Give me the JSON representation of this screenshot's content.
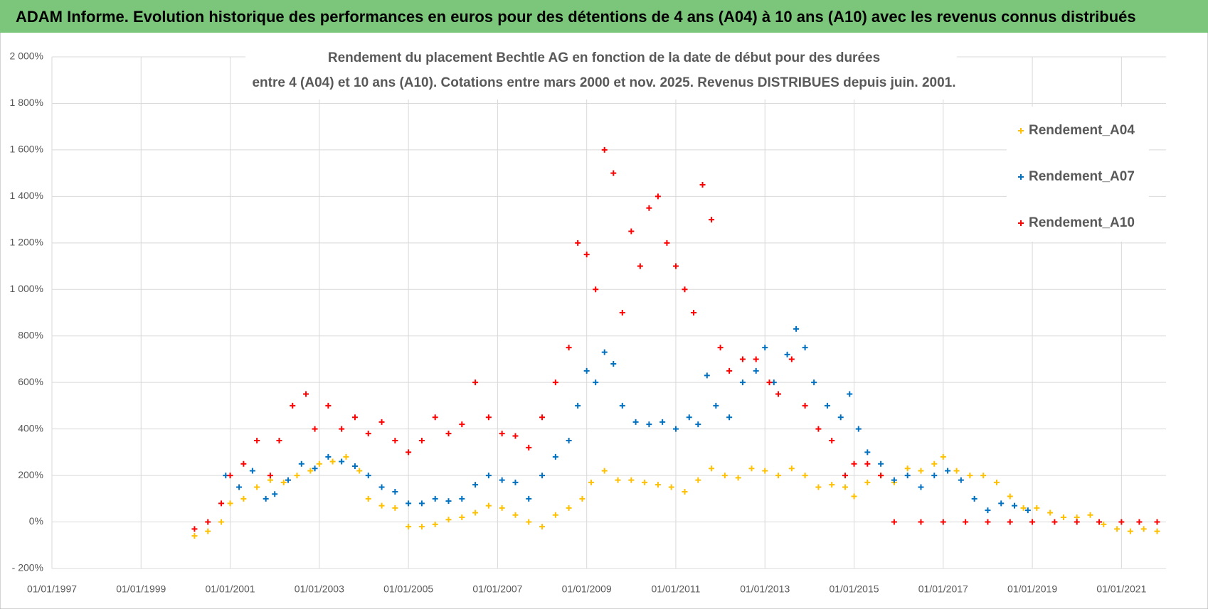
{
  "header_title": "ADAM Informe. Evolution historique des performances en euros pour des détentions de 4 ans (A04) à 10 ans (A10) avec les revenus connus distribués",
  "chart_data": {
    "type": "scatter",
    "title": "Rendement du placement Bechtle AG en fonction de la date de début pour des durées",
    "subtitle": "entre 4 (A04) et 10 ans (A10). Cotations entre mars 2000 et nov. 2025. Revenus DISTRIBUES depuis juin. 2001.",
    "xlim": [
      1997,
      2022
    ],
    "xticks": [
      {
        "value": 1997,
        "label": "01/01/1997"
      },
      {
        "value": 1999,
        "label": "01/01/1999"
      },
      {
        "value": 2001,
        "label": "01/01/2001"
      },
      {
        "value": 2003,
        "label": "01/01/2003"
      },
      {
        "value": 2005,
        "label": "01/01/2005"
      },
      {
        "value": 2007,
        "label": "01/01/2007"
      },
      {
        "value": 2009,
        "label": "01/01/2009"
      },
      {
        "value": 2011,
        "label": "01/01/2011"
      },
      {
        "value": 2013,
        "label": "01/01/2013"
      },
      {
        "value": 2015,
        "label": "01/01/2015"
      },
      {
        "value": 2017,
        "label": "01/01/2017"
      },
      {
        "value": 2019,
        "label": "01/01/2019"
      },
      {
        "value": 2021,
        "label": "01/01/2021"
      }
    ],
    "ylim": [
      -200,
      2000
    ],
    "yticks": [
      {
        "value": -200,
        "label": "- 200%"
      },
      {
        "value": 0,
        "label": "0%"
      },
      {
        "value": 200,
        "label": "200%"
      },
      {
        "value": 400,
        "label": "400%"
      },
      {
        "value": 600,
        "label": "600%"
      },
      {
        "value": 800,
        "label": "800%"
      },
      {
        "value": 1000,
        "label": "1 000%"
      },
      {
        "value": 1200,
        "label": "1 200%"
      },
      {
        "value": 1400,
        "label": "1 400%"
      },
      {
        "value": 1600,
        "label": "1 600%"
      },
      {
        "value": 1800,
        "label": "1 800%"
      },
      {
        "value": 2000,
        "label": "2 000%"
      }
    ],
    "grid": true,
    "legend": "right",
    "series": [
      {
        "name": "Rendement_A04",
        "color": "#ffc000",
        "x": [
          2000.2,
          2000.5,
          2000.8,
          2001.0,
          2001.3,
          2001.6,
          2001.9,
          2002.2,
          2002.5,
          2002.8,
          2003.0,
          2003.3,
          2003.6,
          2003.9,
          2004.1,
          2004.4,
          2004.7,
          2005.0,
          2005.3,
          2005.6,
          2005.9,
          2006.2,
          2006.5,
          2006.8,
          2007.1,
          2007.4,
          2007.7,
          2008.0,
          2008.3,
          2008.6,
          2008.9,
          2009.1,
          2009.4,
          2009.7,
          2010.0,
          2010.3,
          2010.6,
          2010.9,
          2011.2,
          2011.5,
          2011.8,
          2012.1,
          2012.4,
          2012.7,
          2013.0,
          2013.3,
          2013.6,
          2013.9,
          2014.2,
          2014.5,
          2014.8,
          2015.0,
          2015.3,
          2015.6,
          2015.9,
          2016.2,
          2016.5,
          2016.8,
          2017.0,
          2017.3,
          2017.6,
          2017.9,
          2018.2,
          2018.5,
          2018.8,
          2019.1,
          2019.4,
          2019.7,
          2020.0,
          2020.3,
          2020.6,
          2020.9,
          2021.2,
          2021.5,
          2021.8
        ],
        "values": [
          -60,
          -40,
          0,
          80,
          100,
          150,
          180,
          170,
          200,
          220,
          250,
          260,
          280,
          220,
          100,
          70,
          60,
          -20,
          -20,
          -10,
          10,
          20,
          40,
          70,
          60,
          30,
          0,
          -20,
          30,
          60,
          100,
          170,
          220,
          180,
          180,
          170,
          160,
          150,
          130,
          180,
          230,
          200,
          190,
          230,
          220,
          200,
          230,
          200,
          150,
          160,
          150,
          110,
          170,
          200,
          170,
          230,
          220,
          250,
          280,
          220,
          200,
          200,
          170,
          110,
          60,
          60,
          40,
          20,
          20,
          30,
          -10,
          -30,
          -40,
          -30,
          -40
        ]
      },
      {
        "name": "Rendement_A07",
        "color": "#0070c0",
        "x": [
          2000.9,
          2001.2,
          2001.5,
          2001.8,
          2002.0,
          2002.3,
          2002.6,
          2002.9,
          2003.2,
          2003.5,
          2003.8,
          2004.1,
          2004.4,
          2004.7,
          2005.0,
          2005.3,
          2005.6,
          2005.9,
          2006.2,
          2006.5,
          2006.8,
          2007.1,
          2007.4,
          2007.7,
          2008.0,
          2008.3,
          2008.6,
          2008.8,
          2009.0,
          2009.2,
          2009.4,
          2009.6,
          2009.8,
          2010.1,
          2010.4,
          2010.7,
          2011.0,
          2011.3,
          2011.5,
          2011.7,
          2011.9,
          2012.2,
          2012.5,
          2012.8,
          2013.0,
          2013.2,
          2013.5,
          2013.7,
          2013.9,
          2014.1,
          2014.4,
          2014.7,
          2014.9,
          2015.1,
          2015.3,
          2015.6,
          2015.9,
          2016.2,
          2016.5,
          2016.8,
          2017.1,
          2017.4,
          2017.7,
          2018.0,
          2018.3,
          2018.6,
          2018.9
        ],
        "values": [
          200,
          150,
          220,
          100,
          120,
          180,
          250,
          230,
          280,
          260,
          240,
          200,
          150,
          130,
          80,
          80,
          100,
          90,
          100,
          160,
          200,
          180,
          170,
          100,
          200,
          280,
          350,
          500,
          650,
          600,
          730,
          680,
          500,
          430,
          420,
          430,
          400,
          450,
          420,
          630,
          500,
          450,
          600,
          650,
          750,
          600,
          720,
          830,
          750,
          600,
          500,
          450,
          550,
          400,
          300,
          250,
          180,
          200,
          150,
          200,
          220,
          180,
          100,
          50,
          80,
          70,
          50
        ]
      },
      {
        "name": "Rendement_A10",
        "color": "#ff0000",
        "x": [
          2000.2,
          2000.5,
          2000.8,
          2001.0,
          2001.3,
          2001.6,
          2001.9,
          2002.1,
          2002.4,
          2002.7,
          2002.9,
          2003.2,
          2003.5,
          2003.8,
          2004.1,
          2004.4,
          2004.7,
          2005.0,
          2005.3,
          2005.6,
          2005.9,
          2006.2,
          2006.5,
          2006.8,
          2007.1,
          2007.4,
          2007.7,
          2008.0,
          2008.3,
          2008.6,
          2008.8,
          2009.0,
          2009.2,
          2009.4,
          2009.6,
          2009.8,
          2010.0,
          2010.2,
          2010.4,
          2010.6,
          2010.8,
          2011.0,
          2011.2,
          2011.4,
          2011.6,
          2011.8,
          2012.0,
          2012.2,
          2012.5,
          2012.8,
          2013.1,
          2013.3,
          2013.6,
          2013.9,
          2014.2,
          2014.5,
          2014.8,
          2015.0,
          2015.3,
          2015.6,
          2015.9,
          2016.5,
          2017.0,
          2017.5,
          2018.0,
          2018.5,
          2019.0,
          2019.5,
          2020.0,
          2020.5,
          2021.0,
          2021.4,
          2021.8
        ],
        "values": [
          -30,
          0,
          80,
          200,
          250,
          350,
          200,
          350,
          500,
          550,
          400,
          500,
          400,
          450,
          380,
          430,
          350,
          300,
          350,
          450,
          380,
          420,
          600,
          450,
          380,
          370,
          320,
          450,
          600,
          750,
          1200,
          1150,
          1000,
          1600,
          1500,
          900,
          1250,
          1100,
          1350,
          1400,
          1200,
          1100,
          1000,
          900,
          1450,
          1300,
          750,
          650,
          700,
          700,
          600,
          550,
          700,
          500,
          400,
          350,
          200,
          250,
          250,
          200,
          0,
          0,
          0,
          0,
          0,
          0,
          0,
          0,
          0,
          0,
          0,
          0,
          0
        ]
      }
    ]
  }
}
